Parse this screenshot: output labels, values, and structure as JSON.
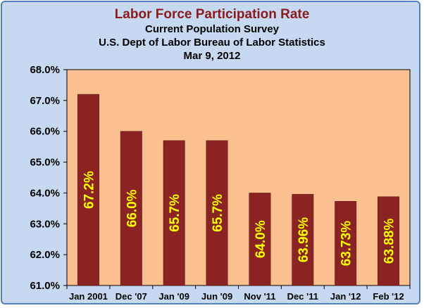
{
  "chart_data": {
    "type": "bar",
    "title": "Labor Force Participation Rate",
    "subtitles": [
      "Current Population Survey",
      "U.S. Dept of Labor Bureau of Labor Statistics",
      "Mar 9, 2012"
    ],
    "categories": [
      "Jan 2001",
      "Dec '07",
      "Jan '09",
      "Jun '09",
      "Nov '11",
      "Dec '11",
      "Jan '12",
      "Feb '12"
    ],
    "values": [
      67.2,
      66.0,
      65.7,
      65.7,
      64.0,
      63.96,
      63.73,
      63.88
    ],
    "data_labels": [
      "67.2%",
      "66.0%",
      "65.7%",
      "65.7%",
      "64.0%",
      "63.96%",
      "63.73%",
      "63.88%"
    ],
    "y_ticks": [
      "68.0%",
      "67.0%",
      "66.0%",
      "65.0%",
      "64.0%",
      "63.0%",
      "62.0%",
      "61.0%"
    ],
    "ylim": [
      61.0,
      68.0
    ],
    "xlabel": "",
    "ylabel": "",
    "grid": false,
    "legend": "none",
    "colors": {
      "bar": "#8b2323",
      "plot_background": "#fac090",
      "chart_background": "#c6d9f1",
      "border": "#4f81bd",
      "title": "#8b1a1a",
      "data_label": "#ffff00"
    }
  }
}
